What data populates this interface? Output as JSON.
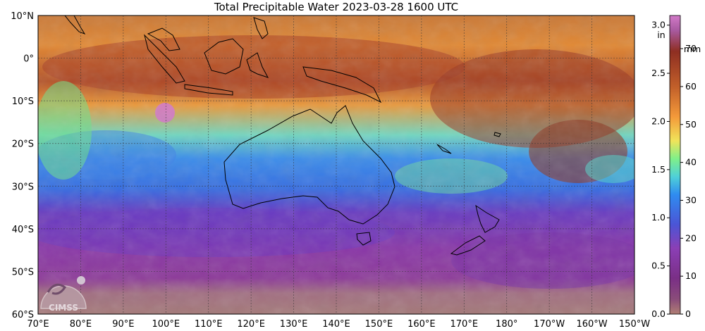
{
  "title": "Total Precipitable Water  2023-03-28 1600 UTC",
  "map": {
    "lat_labels": [
      "10°N",
      "0°",
      "10°S",
      "20°S",
      "30°S",
      "40°S",
      "50°S",
      "60°S"
    ],
    "lon_labels": [
      "70°E",
      "80°E",
      "90°E",
      "100°E",
      "110°E",
      "120°E",
      "130°E",
      "140°E",
      "150°E",
      "160°E",
      "170°E",
      "180°",
      "170°W",
      "160°W",
      "150°W"
    ],
    "extent": {
      "lon_min": 70,
      "lon_max": 210,
      "lat_min": -60,
      "lat_max": 10
    },
    "grid": true
  },
  "colorbar": {
    "unit_left": "in",
    "unit_right": "mm",
    "ticks_in": [
      "0.0",
      "0.5",
      "1.0",
      "1.5",
      "2.0",
      "2.5",
      "3.0"
    ],
    "ticks_mm": [
      "0",
      "10",
      "20",
      "30",
      "40",
      "50",
      "60",
      "70"
    ],
    "colors": [
      "#b07f74",
      "#7a2f86",
      "#8b3fb5",
      "#4b55d6",
      "#2f8cf0",
      "#4fd0d8",
      "#7ff08a",
      "#f0e45a",
      "#f49a3a",
      "#c2602a",
      "#8e2e22",
      "#d27ac8"
    ]
  },
  "logo": {
    "text": "CIMSS"
  }
}
